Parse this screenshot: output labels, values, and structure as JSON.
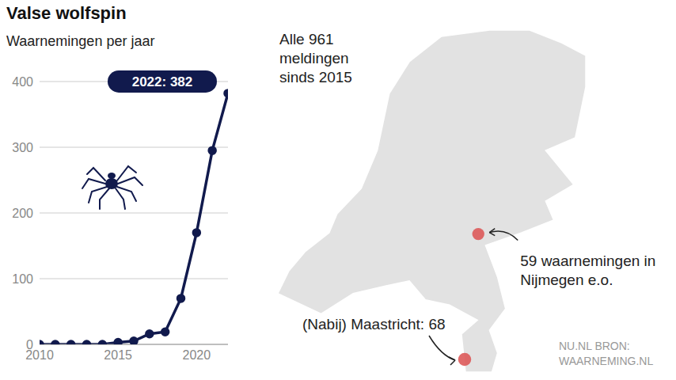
{
  "chart_data": {
    "type": "line",
    "title": "Valse wolfspin",
    "subtitle": "Waarnemingen per jaar",
    "x": [
      2010,
      2011,
      2012,
      2013,
      2014,
      2015,
      2016,
      2017,
      2018,
      2019,
      2020,
      2021,
      2022
    ],
    "values": [
      0,
      0,
      0,
      0,
      0,
      3,
      5,
      16,
      19,
      70,
      170,
      295,
      382
    ],
    "color": "#111a4d",
    "marker": "circle",
    "xlim": [
      2010,
      2022
    ],
    "xticks": [
      2010,
      2015,
      2020
    ],
    "ylim": [
      0,
      400
    ],
    "yticks": [
      0,
      100,
      200,
      300,
      400
    ],
    "grid": true,
    "annotation": "2022: 382"
  },
  "map": {
    "title": "Alle 961 meldingen sinds 2015",
    "color": "#dd5a5a",
    "points": [
      {
        "lon": 5.86,
        "lat": 51.84,
        "count": 59,
        "label": "59 waarnemingen in Nijmegen e.o."
      },
      {
        "lon": 5.69,
        "lat": 50.85,
        "count": 68,
        "label": "(Nabij) Maastricht: 68"
      }
    ]
  },
  "source": "NU.NL BRON: WAARNEMING.NL"
}
